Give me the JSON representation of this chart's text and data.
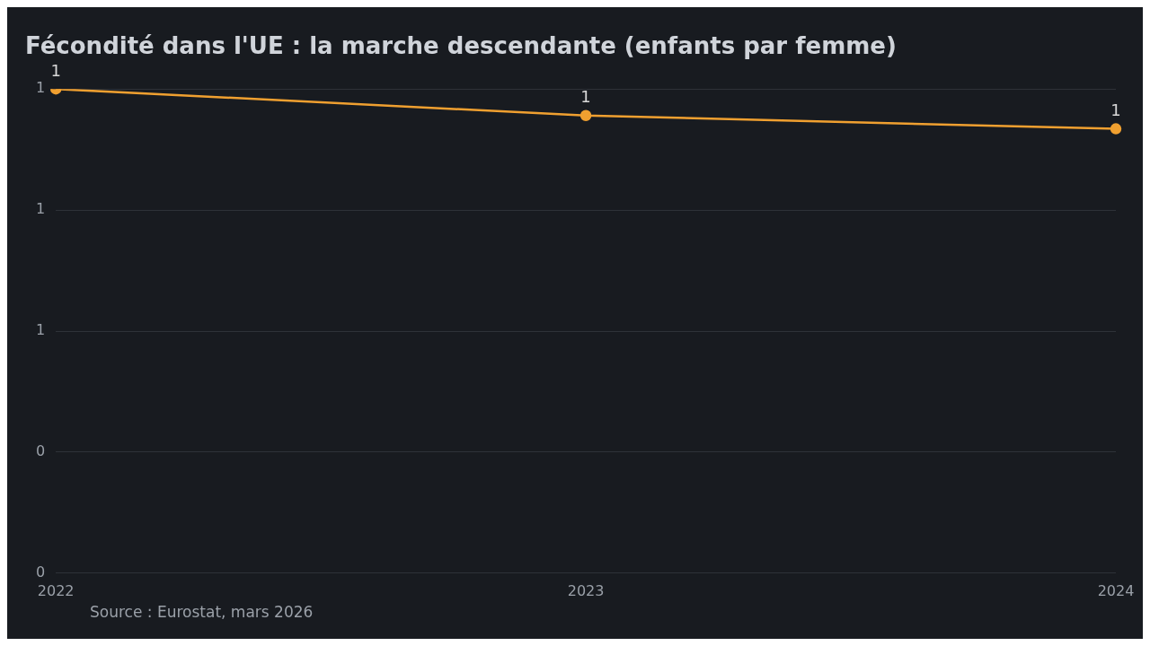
{
  "chart_data": {
    "type": "line",
    "title": "Fécondité dans l'UE : la marche descendante (enfants par femme)",
    "categories": [
      "2022",
      "2023",
      "2024"
    ],
    "series": [
      {
        "color": "#f0a030",
        "values": [
          1.46,
          1.38,
          1.34
        ],
        "value_labels": [
          "1",
          "1",
          "1"
        ]
      }
    ],
    "ylim": [
      0,
      1.46
    ],
    "yticks": [
      {
        "value": 0,
        "label": "0"
      },
      {
        "value": 0.365,
        "label": "0"
      },
      {
        "value": 0.73,
        "label": "1"
      },
      {
        "value": 1.095,
        "label": "1"
      },
      {
        "value": 1.46,
        "label": "1"
      }
    ],
    "grid": "y",
    "legend": false,
    "marker": "circle",
    "line_style": "solid",
    "annotations": [
      "Source : Eurostat, mars 2026"
    ]
  }
}
